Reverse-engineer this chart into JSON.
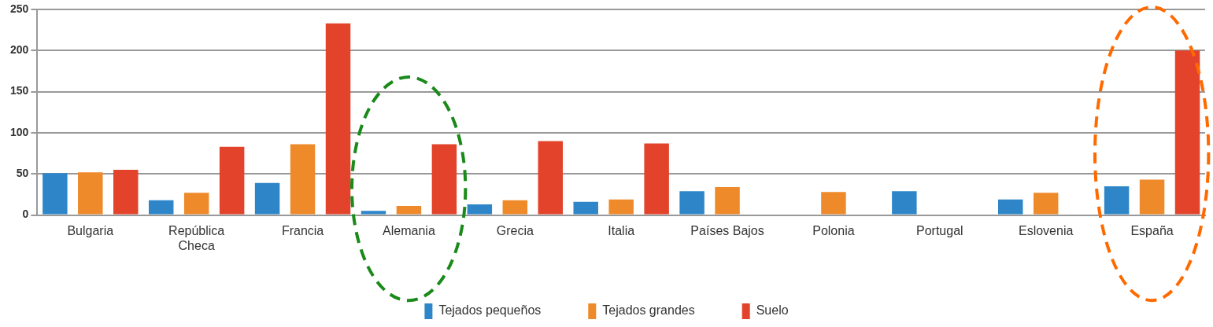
{
  "chart_data": {
    "type": "bar",
    "categories": [
      "Bulgaria",
      "República Checa",
      "Francia",
      "Alemania",
      "Grecia",
      "Italia",
      "Países Bajos",
      "Polonia",
      "Portugal",
      "Eslovenia",
      "España"
    ],
    "series": [
      {
        "name": "Tejados pequeños",
        "color": "#2e86c8",
        "values": [
          51,
          18,
          39,
          5,
          13,
          16,
          29,
          null,
          29,
          19,
          35
        ]
      },
      {
        "name": "Tejados grandes",
        "color": "#ee8a2a",
        "values": [
          52,
          27,
          86,
          11,
          18,
          19,
          34,
          28,
          null,
          27,
          43
        ]
      },
      {
        "name": "Suelo",
        "color": "#e2432a",
        "values": [
          55,
          83,
          233,
          86,
          90,
          87,
          null,
          null,
          null,
          null,
          200
        ]
      }
    ],
    "ylim": [
      0,
      250
    ],
    "yticks": [
      0,
      50,
      100,
      150,
      200,
      250
    ],
    "grid": "y",
    "legend": "bottom"
  }
}
